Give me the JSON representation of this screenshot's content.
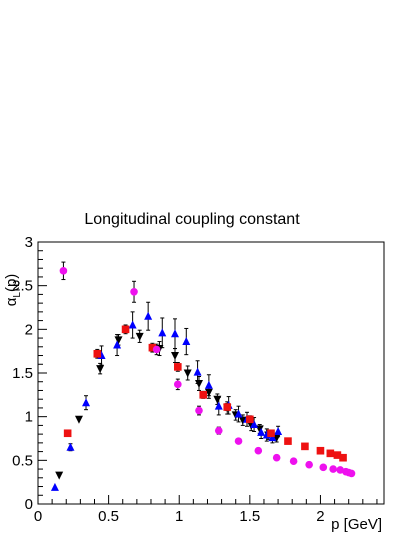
{
  "chart_data": {
    "type": "scatter",
    "title": "Longitudinal coupling constant",
    "xlabel": "p [GeV]",
    "ylabel_main": "α",
    "ylabel_sub": "L",
    "ylabel_tail": "(p)",
    "xlim": [
      0,
      2.45
    ],
    "ylim": [
      0,
      3
    ],
    "x_ticks": [
      "0",
      "0.5",
      "1",
      "1.5",
      "2"
    ],
    "x_tick_values": [
      0,
      0.5,
      1,
      1.5,
      2
    ],
    "y_ticks": [
      "0",
      "0.5",
      "1",
      "1.5",
      "2",
      "2.5",
      "3"
    ],
    "y_tick_values": [
      0,
      0.5,
      1,
      1.5,
      2,
      2.5,
      3
    ],
    "grid": false,
    "series": [
      {
        "marker": "triangle-down",
        "color": "#000000",
        "points": [
          {
            "x": 0.15,
            "y": 0.33,
            "err": 0
          },
          {
            "x": 0.29,
            "y": 0.97,
            "err": 0
          },
          {
            "x": 0.44,
            "y": 1.55,
            "err": 0.06
          },
          {
            "x": 0.57,
            "y": 1.88,
            "err": 0.06
          },
          {
            "x": 0.72,
            "y": 1.92,
            "err": 0.07
          },
          {
            "x": 0.86,
            "y": 1.78,
            "err": 0.08
          },
          {
            "x": 0.97,
            "y": 1.7,
            "err": 0.08
          },
          {
            "x": 1.06,
            "y": 1.5,
            "err": 0.08
          },
          {
            "x": 1.14,
            "y": 1.38,
            "err": 0.08
          },
          {
            "x": 1.21,
            "y": 1.28,
            "err": 0.07
          },
          {
            "x": 1.27,
            "y": 1.2,
            "err": 0.06
          },
          {
            "x": 1.34,
            "y": 1.1,
            "err": 0.07
          },
          {
            "x": 1.4,
            "y": 1.02,
            "err": 0.06
          },
          {
            "x": 1.45,
            "y": 0.96,
            "err": 0.06
          },
          {
            "x": 1.51,
            "y": 0.9,
            "err": 0.06
          },
          {
            "x": 1.57,
            "y": 0.86,
            "err": 0.05
          },
          {
            "x": 1.63,
            "y": 0.79,
            "err": 0.05
          },
          {
            "x": 1.69,
            "y": 0.76,
            "err": 0.05
          }
        ]
      },
      {
        "marker": "triangle-up",
        "color": "#0000ff",
        "points": [
          {
            "x": 0.12,
            "y": 0.19,
            "err": 0
          },
          {
            "x": 0.23,
            "y": 0.65,
            "err": 0.04
          },
          {
            "x": 0.34,
            "y": 1.16,
            "err": 0.08
          },
          {
            "x": 0.45,
            "y": 1.7,
            "err": 0.11
          },
          {
            "x": 0.56,
            "y": 1.82,
            "err": 0.12
          },
          {
            "x": 0.67,
            "y": 2.05,
            "err": 0.15
          },
          {
            "x": 0.78,
            "y": 2.15,
            "err": 0.16
          },
          {
            "x": 0.88,
            "y": 1.96,
            "err": 0.17
          },
          {
            "x": 0.97,
            "y": 1.95,
            "err": 0.17
          },
          {
            "x": 1.05,
            "y": 1.86,
            "err": 0.15
          },
          {
            "x": 1.13,
            "y": 1.51,
            "err": 0.13
          },
          {
            "x": 1.21,
            "y": 1.36,
            "err": 0.12
          },
          {
            "x": 1.28,
            "y": 1.12,
            "err": 0.1
          },
          {
            "x": 1.35,
            "y": 1.13,
            "err": 0.1
          },
          {
            "x": 1.42,
            "y": 1.03,
            "err": 0.09
          },
          {
            "x": 1.48,
            "y": 0.97,
            "err": 0.08
          },
          {
            "x": 1.53,
            "y": 0.91,
            "err": 0.08
          },
          {
            "x": 1.58,
            "y": 0.82,
            "err": 0.07
          },
          {
            "x": 1.62,
            "y": 0.79,
            "err": 0.07
          },
          {
            "x": 1.66,
            "y": 0.76,
            "err": 0.06
          },
          {
            "x": 1.7,
            "y": 0.83,
            "err": 0.06
          }
        ]
      },
      {
        "marker": "square",
        "color": "#ee1111",
        "points": [
          {
            "x": 0.21,
            "y": 0.81,
            "err": 0
          },
          {
            "x": 0.42,
            "y": 1.72,
            "err": 0.05
          },
          {
            "x": 0.62,
            "y": 2.0,
            "err": 0.05
          },
          {
            "x": 0.81,
            "y": 1.79,
            "err": 0.05
          },
          {
            "x": 0.99,
            "y": 1.57,
            "err": 0.05
          },
          {
            "x": 1.17,
            "y": 1.25,
            "err": 0.04
          },
          {
            "x": 1.34,
            "y": 1.11,
            "err": 0.04
          },
          {
            "x": 1.5,
            "y": 0.97,
            "err": 0.04
          },
          {
            "x": 1.65,
            "y": 0.81,
            "err": 0
          },
          {
            "x": 1.77,
            "y": 0.72,
            "err": 0
          },
          {
            "x": 1.89,
            "y": 0.66,
            "err": 0
          },
          {
            "x": 2.0,
            "y": 0.61,
            "err": 0
          },
          {
            "x": 2.07,
            "y": 0.58,
            "err": 0
          },
          {
            "x": 2.12,
            "y": 0.56,
            "err": 0
          },
          {
            "x": 2.16,
            "y": 0.53,
            "err": 0
          }
        ]
      },
      {
        "marker": "circle",
        "color": "#ee11ee",
        "points": [
          {
            "x": 0.18,
            "y": 2.67,
            "err": 0.1
          },
          {
            "x": 0.68,
            "y": 2.43,
            "err": 0.12
          },
          {
            "x": 0.84,
            "y": 1.77,
            "err": 0.06
          },
          {
            "x": 0.99,
            "y": 1.37,
            "err": 0.06
          },
          {
            "x": 1.14,
            "y": 1.07,
            "err": 0.05
          },
          {
            "x": 1.28,
            "y": 0.84,
            "err": 0.04
          },
          {
            "x": 1.42,
            "y": 0.72,
            "err": 0
          },
          {
            "x": 1.56,
            "y": 0.61,
            "err": 0
          },
          {
            "x": 1.69,
            "y": 0.53,
            "err": 0
          },
          {
            "x": 1.81,
            "y": 0.49,
            "err": 0
          },
          {
            "x": 1.92,
            "y": 0.45,
            "err": 0
          },
          {
            "x": 2.02,
            "y": 0.42,
            "err": 0
          },
          {
            "x": 2.09,
            "y": 0.4,
            "err": 0
          },
          {
            "x": 2.14,
            "y": 0.39,
            "err": 0
          },
          {
            "x": 2.18,
            "y": 0.37,
            "err": 0
          },
          {
            "x": 2.2,
            "y": 0.36,
            "err": 0
          },
          {
            "x": 2.22,
            "y": 0.35,
            "err": 0
          }
        ]
      }
    ]
  }
}
